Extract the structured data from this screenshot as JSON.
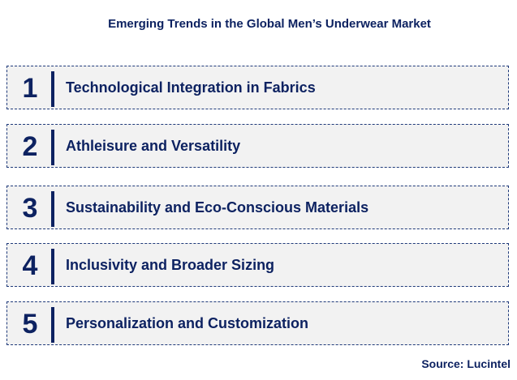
{
  "title": "Emerging Trends in the Global Men’s Underwear Market",
  "items": [
    {
      "number": "1",
      "label": "Technological Integration in Fabrics"
    },
    {
      "number": "2",
      "label": "Athleisure and Versatility"
    },
    {
      "number": "3",
      "label": "Sustainability and Eco-Conscious Materials"
    },
    {
      "number": "4",
      "label": "Inclusivity and Broader Sizing"
    },
    {
      "number": "5",
      "label": "Personalization and Customization"
    }
  ],
  "source": "Source: Lucintel",
  "colors": {
    "text": "#0d2261",
    "box_background": "#f2f2f2"
  }
}
